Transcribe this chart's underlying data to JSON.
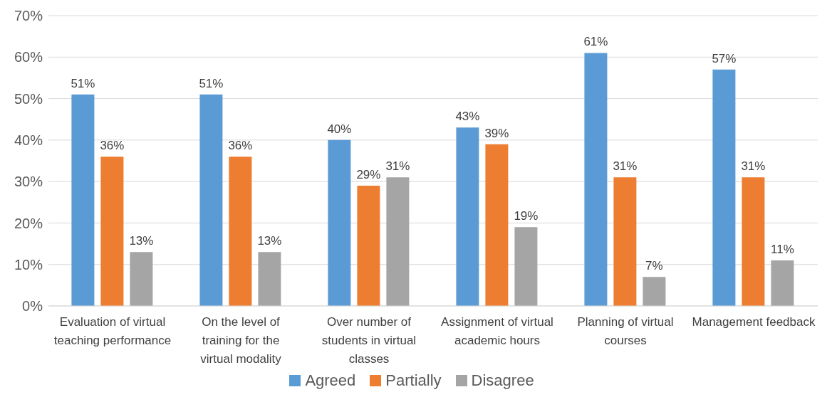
{
  "chart_data": {
    "type": "bar",
    "categories": [
      "Evaluation of virtual teaching performance",
      "On the level of training for the virtual modality",
      "Over number of students in virtual classes",
      "Assignment of virtual academic hours",
      "Planning of virtual courses",
      "Management feedback"
    ],
    "series": [
      {
        "name": "Agreed",
        "color": "#5b9bd5",
        "values": [
          51,
          51,
          40,
          43,
          61,
          57
        ],
        "value_labels": [
          "51%",
          "51%",
          "40%",
          "43%",
          "61%",
          "57%"
        ]
      },
      {
        "name": "Partially",
        "color": "#ed7d31",
        "values": [
          36,
          36,
          29,
          39,
          31,
          31
        ],
        "value_labels": [
          "36%",
          "36%",
          "29%",
          "39%",
          "31%",
          "31%"
        ]
      },
      {
        "name": "Disagree",
        "color": "#a5a5a5",
        "values": [
          13,
          13,
          31,
          19,
          7,
          11
        ],
        "value_labels": [
          "13%",
          "13%",
          "31%",
          "19%",
          "7%",
          "11%"
        ]
      }
    ],
    "ylim": [
      0,
      70
    ],
    "yticks": [
      {
        "value": 0,
        "label": "0%"
      },
      {
        "value": 10,
        "label": "10%"
      },
      {
        "value": 20,
        "label": "20%"
      },
      {
        "value": 30,
        "label": "30%"
      },
      {
        "value": 40,
        "label": "40%"
      },
      {
        "value": 50,
        "label": "50%"
      },
      {
        "value": 60,
        "label": "60%"
      },
      {
        "value": 70,
        "label": "70%"
      }
    ],
    "grid": "y",
    "legend": "bottom"
  }
}
